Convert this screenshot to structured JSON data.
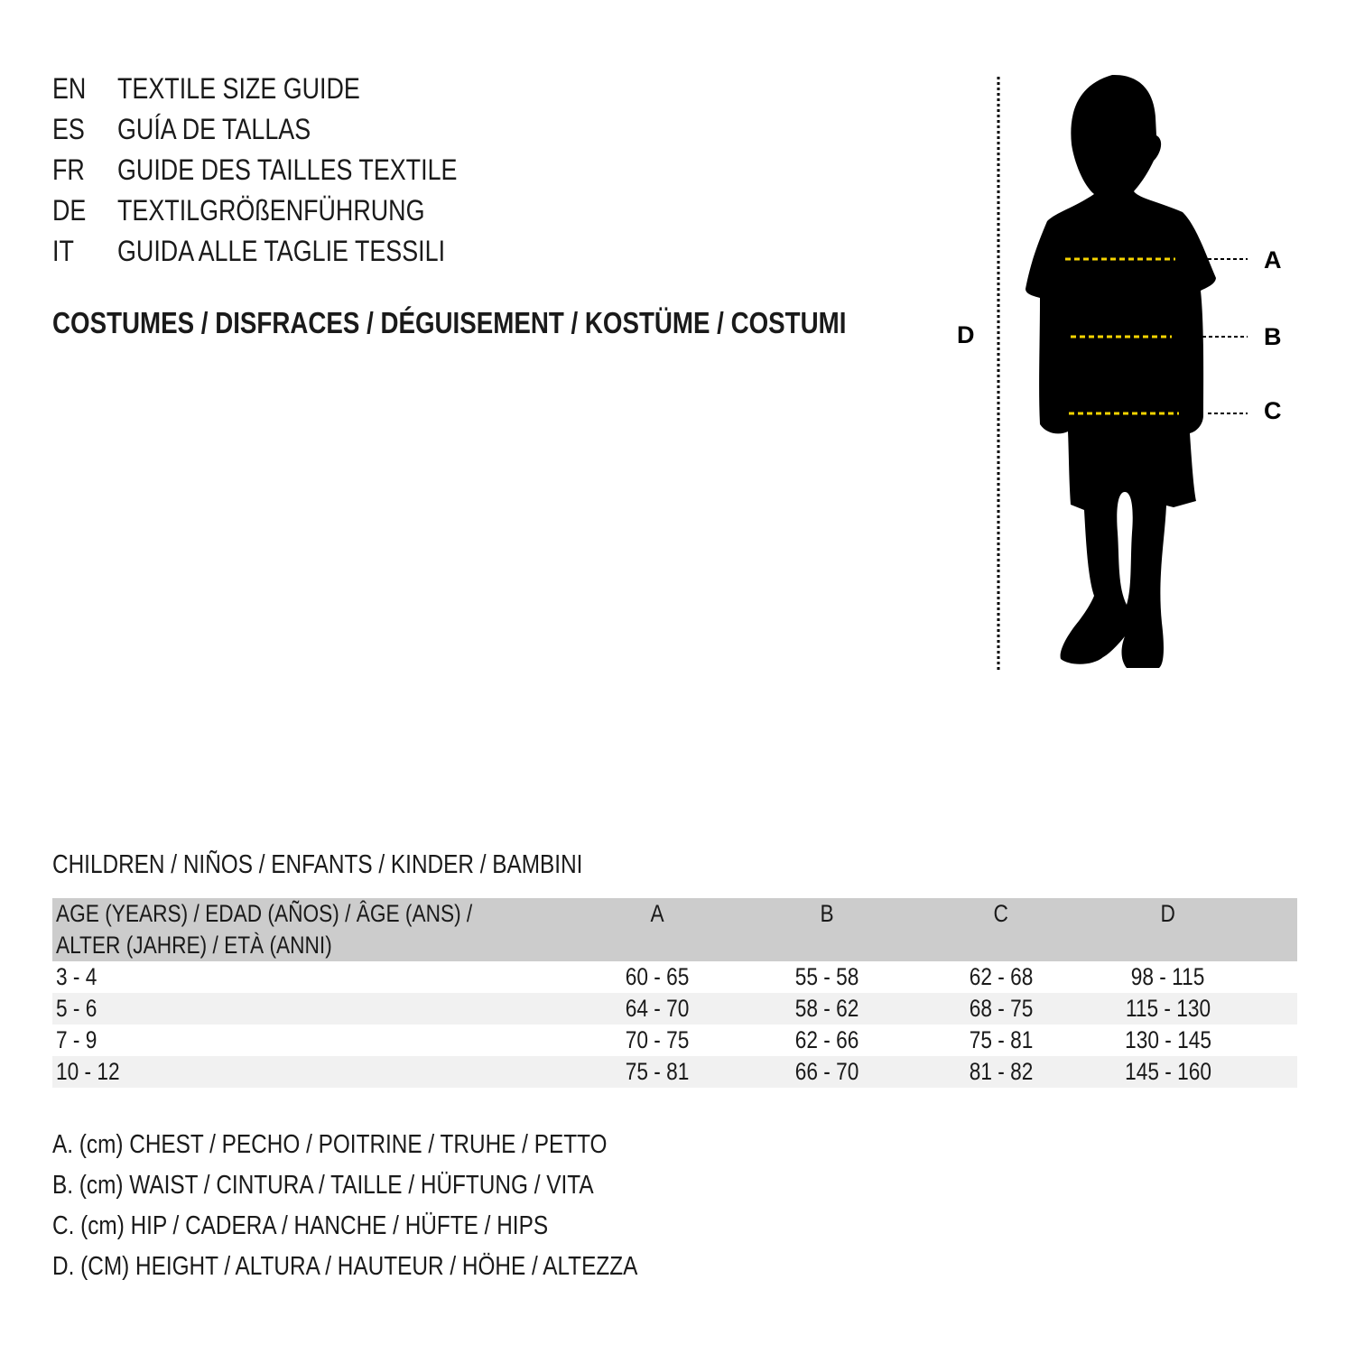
{
  "languages": [
    {
      "code": "EN",
      "title": "TEXTILE SIZE GUIDE"
    },
    {
      "code": "ES",
      "title": "GUÍA DE TALLAS"
    },
    {
      "code": "FR",
      "title": "GUIDE DES TAILLES TEXTILE"
    },
    {
      "code": "DE",
      "title": "TEXTILGRÖßENFÜHRUNG"
    },
    {
      "code": "IT",
      "title": "GUIDA ALLE TAGLIE TESSILI"
    }
  ],
  "category": "COSTUMES / DISFRACES / DÉGUISEMENT / KOSTÜME / COSTUMI",
  "diagram": {
    "labels": {
      "a": "A",
      "b": "B",
      "c": "C",
      "d": "D"
    },
    "measure_line_color": "#f5d300"
  },
  "table": {
    "title": "CHILDREN / NIÑOS / ENFANTS / KINDER / BAMBINI",
    "header": {
      "age_line1": "AGE (YEARS) / EDAD (AÑOS) / ÂGE (ANS) /",
      "age_line2": "ALTER (JAHRE) / ETÀ (ANNI)",
      "a": "A",
      "b": "B",
      "c": "C",
      "d": "D"
    },
    "rows": [
      {
        "age": "3 - 4",
        "a": "60 - 65",
        "b": "55 - 58",
        "c": "62 - 68",
        "d": "98 - 115"
      },
      {
        "age": "5 - 6",
        "a": "64 - 70",
        "b": "58 - 62",
        "c": "68 - 75",
        "d": "115 - 130"
      },
      {
        "age": "7 - 9",
        "a": "70 - 75",
        "b": "62 - 66",
        "c": "75 - 81",
        "d": "130 - 145"
      },
      {
        "age": "10 - 12",
        "a": "75 - 81",
        "b": "66 - 70",
        "c": "81 - 82",
        "d": "145 - 160"
      }
    ]
  },
  "legend": [
    "A. (cm) CHEST / PECHO / POITRINE / TRUHE / PETTO",
    "B. (cm) WAIST / CINTURA / TAILLE / HÜFTUNG / VITA",
    "C. (cm) HIP / CADERA / HANCHE / HÜFTE / HIPS",
    "D. (CM) HEIGHT / ALTURA / HAUTEUR / HÖHE / ALTEZZA"
  ]
}
